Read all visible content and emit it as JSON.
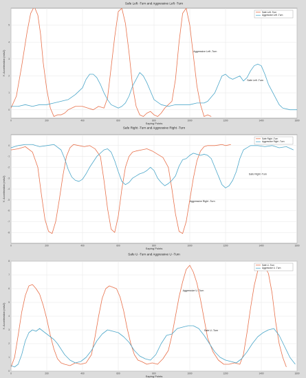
{
  "figure": {
    "background": "#dcdcdc"
  },
  "colors": {
    "safe": "#4aa6c9",
    "aggressive": "#e8704a"
  },
  "chart_data": [
    {
      "type": "line",
      "title": "Safe Left -Turn and Aggressive Left -Turn",
      "xlabel": "Saping Points",
      "ylabel": "Y- Acceleration (m/s2)",
      "xlim": [
        0,
        1600
      ],
      "ylim": [
        -0.5,
        6
      ],
      "xticks": [
        0,
        200,
        400,
        600,
        800,
        1000,
        1200,
        1400,
        1600
      ],
      "yticks": [
        0,
        1,
        2,
        3,
        4,
        5
      ],
      "grid": true,
      "legend_position": "top-right",
      "series": [
        {
          "name": "Safe Left -Turn",
          "color": "#e8704a",
          "x": [
            0,
            30,
            60,
            90,
            110,
            130,
            150,
            165,
            180,
            200,
            220,
            240,
            260,
            280,
            300,
            320,
            340,
            360,
            380,
            400,
            430,
            460,
            490,
            520,
            540,
            560,
            580,
            600,
            620,
            640,
            660,
            680,
            700,
            720,
            740,
            760,
            780,
            800,
            820,
            840,
            860,
            880,
            900,
            920,
            940,
            960,
            980,
            1000,
            1020,
            1040,
            1060,
            1080,
            1100,
            1120
          ],
          "y": [
            0.1,
            0.8,
            2.6,
            4.6,
            5.7,
            6.1,
            5.6,
            4.5,
            2.8,
            1.2,
            0.1,
            -0.4,
            -0.3,
            -0.3,
            -0.2,
            0.0,
            0.1,
            0.2,
            0.2,
            0.2,
            0.1,
            0.0,
            0.2,
            0.1,
            0.7,
            2.5,
            4.3,
            5.8,
            6.0,
            5.1,
            3.4,
            1.4,
            0.2,
            -0.3,
            -0.4,
            -0.2,
            -0.1,
            -0.3,
            -0.4,
            -0.2,
            0.1,
            0.3,
            0.5,
            1.8,
            4.0,
            5.7,
            6.0,
            5.0,
            3.2,
            1.4,
            0.3,
            -0.4,
            -0.3,
            -0.4
          ]
        },
        {
          "name": "Aggressive Left -Turn",
          "color": "#4aa6c9",
          "x": [
            0,
            40,
            80,
            120,
            160,
            200,
            240,
            280,
            320,
            360,
            400,
            420,
            440,
            460,
            480,
            500,
            520,
            540,
            560,
            580,
            600,
            620,
            640,
            660,
            680,
            700,
            720,
            740,
            760,
            780,
            800,
            840,
            880,
            920,
            960,
            1000,
            1040,
            1080,
            1100,
            1140,
            1160,
            1180,
            1200,
            1220,
            1240,
            1260,
            1280,
            1300,
            1320,
            1340,
            1360,
            1380,
            1400,
            1420,
            1440,
            1460,
            1480,
            1500,
            1520,
            1560,
            1600
          ],
          "y": [
            0.2,
            0.2,
            0.3,
            0.2,
            0.3,
            0.3,
            0.4,
            0.5,
            0.6,
            0.9,
            1.3,
            1.8,
            2.1,
            2.1,
            1.9,
            1.5,
            1.0,
            0.6,
            0.3,
            0.2,
            0.1,
            0.2,
            0.4,
            0.8,
            1.4,
            1.8,
            2.2,
            2.0,
            1.6,
            1.1,
            0.6,
            0.3,
            0.2,
            0.3,
            0.3,
            0.3,
            0.4,
            0.4,
            0.5,
            1.0,
            1.5,
            2.0,
            2.1,
            1.9,
            1.8,
            1.9,
            2.0,
            1.7,
            1.9,
            2.3,
            2.6,
            2.7,
            2.6,
            2.1,
            1.5,
            1.1,
            0.7,
            0.3,
            0.1,
            0.0,
            0.0
          ]
        }
      ],
      "annotations": [
        {
          "text": "Aggressive Left -Turn",
          "x": 1020,
          "y": 3.4
        },
        {
          "text": "Safe Left -Turn",
          "x": 1320,
          "y": 1.7
        }
      ]
    },
    {
      "type": "line",
      "title": "Safe Right -Turn and Aggressive Right -Turn",
      "xlabel": "Saping Points",
      "ylabel": "Y- Acceleration (m/s2)",
      "xlim": [
        0,
        1600
      ],
      "ylim": [
        -9,
        1
      ],
      "xticks": [
        0,
        200,
        400,
        600,
        800,
        1000,
        1200,
        1400,
        1600
      ],
      "yticks": [
        0,
        -1,
        -2,
        -3,
        -4,
        -5,
        -6,
        -7,
        -8
      ],
      "grid": true,
      "legend_position": "top-right",
      "series": [
        {
          "name": "Safe Right -Turn",
          "color": "#e8704a",
          "x": [
            0,
            40,
            80,
            120,
            150,
            170,
            190,
            210,
            230,
            250,
            270,
            290,
            310,
            330,
            350,
            380,
            410,
            440,
            470,
            500,
            520,
            540,
            560,
            580,
            600,
            620,
            640,
            660,
            680,
            700,
            730,
            760,
            790,
            820,
            850,
            880,
            900,
            920,
            940,
            960,
            980,
            1000,
            1020,
            1040,
            1060,
            1080,
            1100,
            1140,
            1180,
            1200,
            1230
          ],
          "y": [
            -0.4,
            -0.3,
            -0.1,
            -0.6,
            -2.0,
            -4.5,
            -6.8,
            -7.9,
            -8.1,
            -7.0,
            -5.0,
            -2.8,
            -1.0,
            -0.2,
            0.1,
            0.0,
            -0.1,
            0.0,
            -0.3,
            -1.0,
            -3.2,
            -5.8,
            -7.7,
            -8.0,
            -6.5,
            -4.0,
            -2.0,
            -1.0,
            -0.6,
            -0.5,
            -0.4,
            -0.3,
            -0.5,
            -0.8,
            -1.1,
            -2.0,
            -4.0,
            -6.3,
            -7.9,
            -8.1,
            -7.0,
            -5.0,
            -3.0,
            -1.4,
            -0.5,
            -0.1,
            0.0,
            0.0,
            0.1,
            0.0,
            0.1
          ]
        },
        {
          "name": "Aggressive Right -Turn",
          "color": "#4aa6c9",
          "x": [
            0,
            40,
            80,
            120,
            160,
            200,
            240,
            280,
            300,
            320,
            340,
            360,
            380,
            400,
            420,
            440,
            480,
            520,
            540,
            560,
            580,
            600,
            620,
            640,
            660,
            680,
            700,
            720,
            740,
            760,
            780,
            800,
            820,
            840,
            860,
            880,
            900,
            920,
            940,
            960,
            980,
            1000,
            1020,
            1040,
            1060,
            1080,
            1100,
            1120,
            1140,
            1160,
            1180,
            1200,
            1220,
            1240,
            1260,
            1280,
            1300,
            1320,
            1340,
            1380,
            1420,
            1460,
            1500,
            1540,
            1580
          ],
          "y": [
            -0.2,
            0.0,
            0.1,
            0.1,
            -0.1,
            0.0,
            0.1,
            -0.4,
            -1.2,
            -2.2,
            -2.9,
            -3.2,
            -3.3,
            -3.1,
            -2.6,
            -2.0,
            -1.0,
            -0.4,
            -0.3,
            -0.6,
            -1.4,
            -2.4,
            -3.3,
            -3.6,
            -3.4,
            -3.0,
            -2.8,
            -2.6,
            -2.5,
            -2.3,
            -2.0,
            -2.3,
            -3.0,
            -3.4,
            -3.7,
            -3.5,
            -3.2,
            -2.8,
            -1.9,
            -1.3,
            -1.2,
            -0.9,
            -0.7,
            -0.8,
            -0.9,
            -0.8,
            -0.9,
            -1.2,
            -2.0,
            -2.8,
            -3.6,
            -3.9,
            -3.7,
            -3.2,
            -2.4,
            -1.2,
            -0.4,
            -0.2,
            0.0,
            0.0,
            -0.1,
            0.0,
            -0.2,
            -0.1,
            -0.4
          ]
        }
      ],
      "annotations": [
        {
          "text": "Aggressive Right -Turn",
          "x": 1000,
          "y": -5.2
        },
        {
          "text": "Safe Right -Turn",
          "x": 1330,
          "y": -2.7
        }
      ]
    },
    {
      "type": "line",
      "title": "Safe U -Turn and Aggressive U -Turn",
      "xlabel": "Saping Points",
      "ylabel": "Y- Acceleration (m/s2)",
      "xlim": [
        0,
        1600
      ],
      "ylim": [
        0,
        8
      ],
      "xticks": [
        0,
        200,
        400,
        600,
        800,
        1000,
        1200,
        1400,
        1600
      ],
      "yticks": [
        0,
        1,
        2,
        3,
        4,
        5,
        6,
        7,
        8
      ],
      "grid": true,
      "legend_position": "top-right",
      "series": [
        {
          "name": "Safe U -Turn",
          "color": "#e8704a",
          "x": [
            0,
            20,
            40,
            60,
            80,
            100,
            120,
            140,
            160,
            180,
            200,
            220,
            240,
            260,
            280,
            300,
            330,
            360,
            390,
            420,
            450,
            470,
            490,
            510,
            530,
            550,
            570,
            590,
            610,
            630,
            650,
            670,
            690,
            710,
            730,
            760,
            790,
            820,
            850,
            880,
            900,
            920,
            940,
            960,
            980,
            1000,
            1020,
            1040,
            1060,
            1080,
            1100,
            1130,
            1160,
            1190,
            1220,
            1250,
            1280,
            1300,
            1320,
            1340,
            1360,
            1380,
            1400,
            1420,
            1440,
            1460,
            1480,
            1500,
            1520,
            1540
          ],
          "y": [
            0.3,
            1.0,
            2.6,
            4.3,
            5.5,
            6.2,
            6.3,
            6.0,
            5.6,
            4.8,
            3.8,
            2.6,
            1.6,
            0.9,
            0.6,
            0.5,
            0.4,
            0.6,
            0.5,
            0.6,
            1.2,
            2.5,
            4.0,
            5.3,
            6.0,
            6.2,
            6.1,
            6.0,
            5.4,
            4.4,
            3.1,
            2.0,
            1.2,
            0.8,
            0.7,
            0.5,
            0.6,
            0.5,
            0.9,
            1.5,
            2.6,
            4.0,
            5.4,
            6.5,
            7.4,
            7.7,
            7.2,
            6.4,
            5.2,
            3.8,
            2.4,
            1.4,
            0.8,
            0.5,
            0.5,
            0.6,
            0.5,
            1.2,
            2.8,
            4.6,
            6.2,
            7.3,
            7.7,
            7.6,
            7.1,
            5.7,
            3.6,
            2.0,
            1.0,
            0.3
          ]
        },
        {
          "name": "Aggressive U -Turn",
          "color": "#4aa6c9",
          "x": [
            0,
            20,
            40,
            60,
            80,
            100,
            120,
            140,
            160,
            180,
            200,
            220,
            240,
            260,
            280,
            300,
            330,
            360,
            390,
            420,
            450,
            480,
            510,
            540,
            570,
            600,
            630,
            660,
            690,
            720,
            750,
            780,
            810,
            840,
            870,
            900,
            930,
            960,
            990,
            1020,
            1050,
            1080,
            1110,
            1140,
            1170,
            1200,
            1230,
            1260,
            1290,
            1320,
            1350,
            1380,
            1410,
            1440,
            1470,
            1500,
            1530,
            1560,
            1590
          ],
          "y": [
            0.4,
            0.3,
            0.5,
            1.2,
            2.2,
            2.8,
            3.0,
            2.9,
            3.1,
            2.9,
            2.7,
            2.5,
            2.3,
            2.0,
            1.6,
            1.2,
            0.8,
            0.6,
            0.7,
            1.0,
            1.5,
            2.2,
            2.7,
            3.0,
            2.9,
            2.8,
            2.5,
            2.1,
            1.5,
            1.1,
            0.9,
            0.8,
            1.2,
            2.0,
            2.6,
            2.7,
            3.1,
            3.2,
            3.3,
            3.3,
            3.1,
            2.6,
            2.0,
            1.4,
            1.0,
            0.8,
            0.7,
            0.6,
            0.9,
            1.4,
            2.0,
            2.5,
            2.8,
            3.0,
            3.1,
            2.6,
            1.8,
            1.0,
            0.5
          ]
        }
      ],
      "annotations": [
        {
          "text": "Aggressive U -Turn",
          "x": 960,
          "y": 5.8
        },
        {
          "text": "Safe U -Turn",
          "x": 1080,
          "y": 2.9
        }
      ]
    }
  ]
}
